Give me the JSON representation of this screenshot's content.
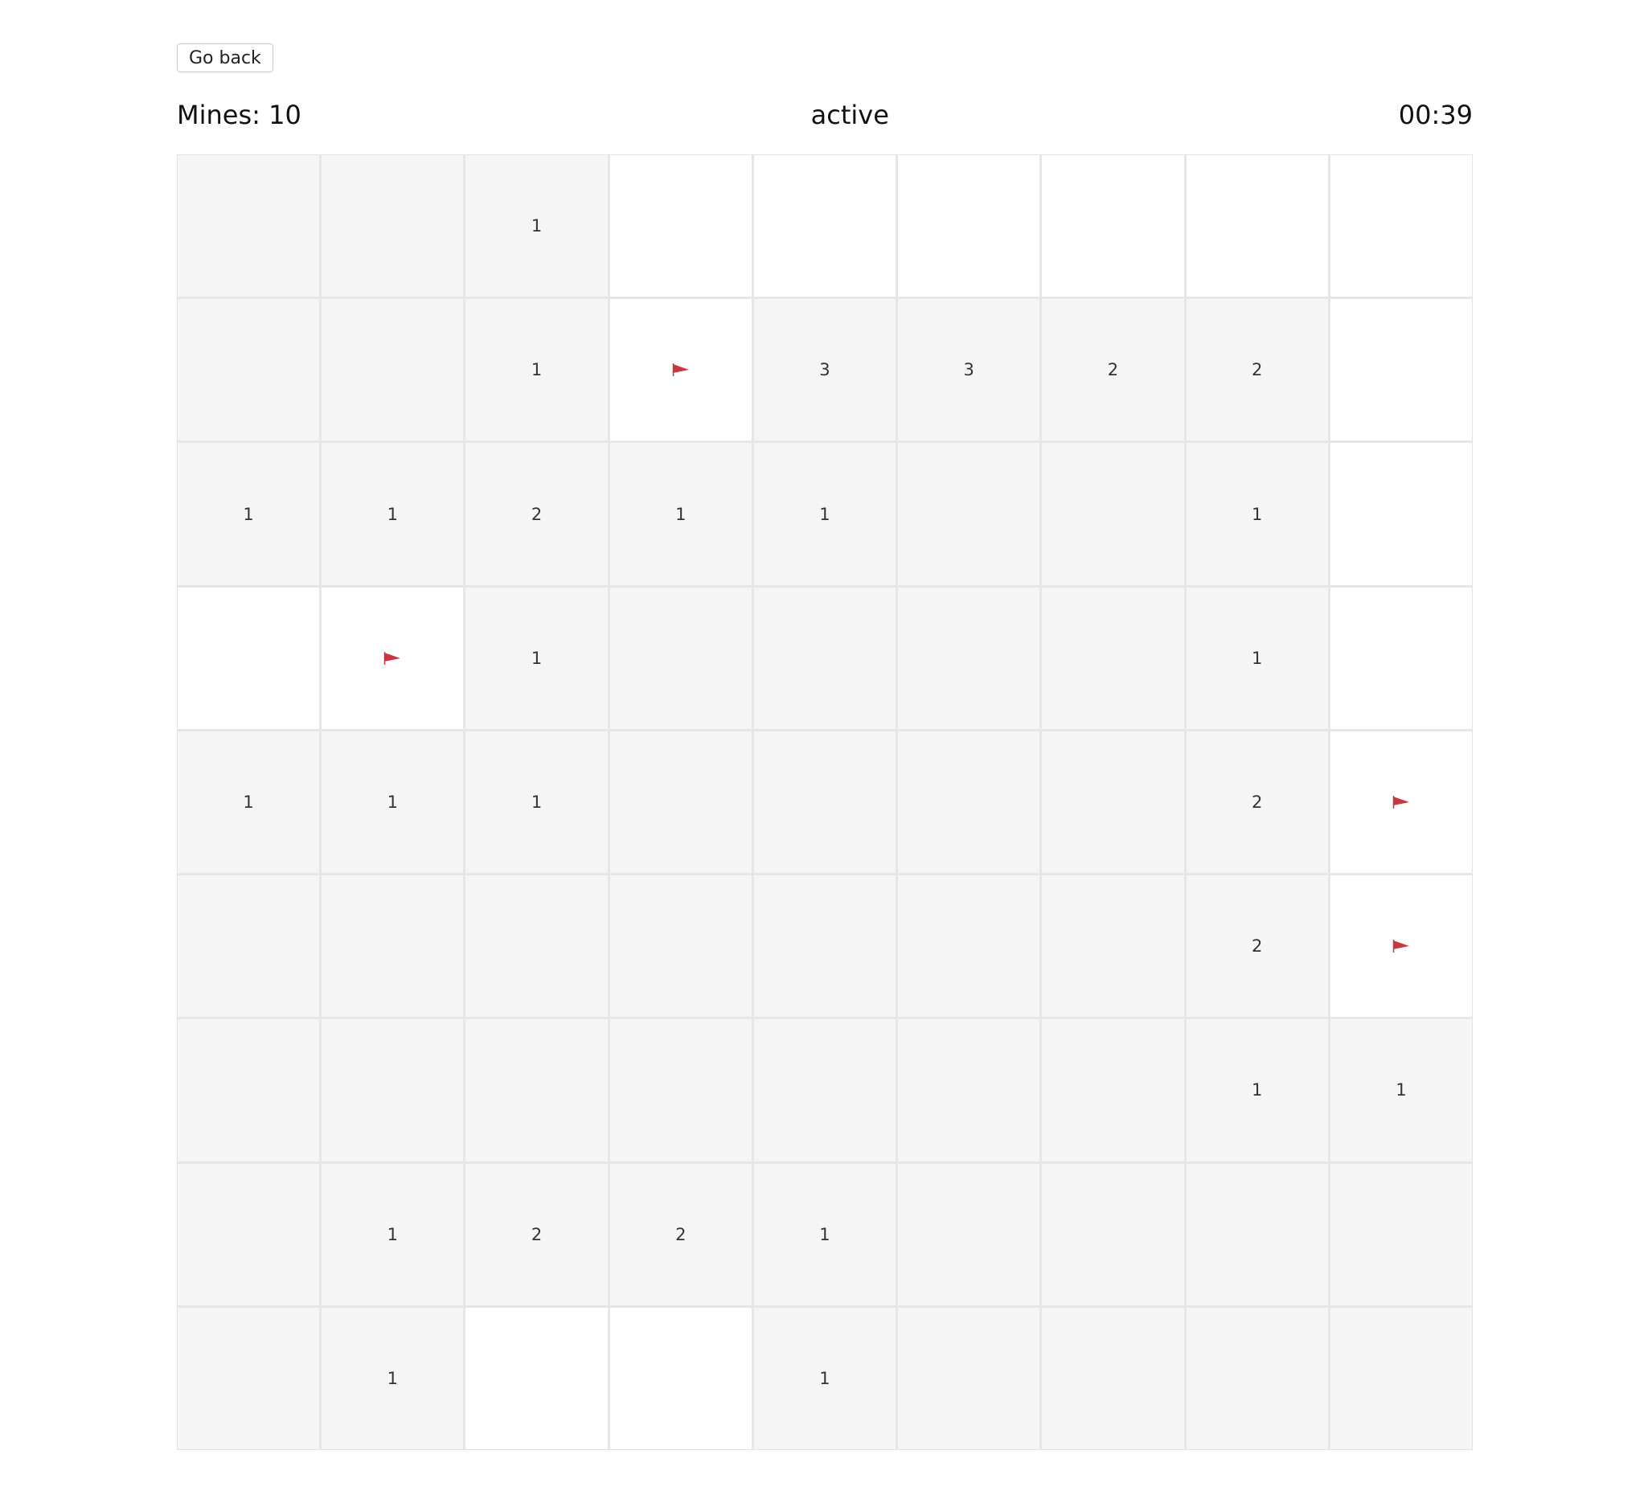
{
  "nav": {
    "back_label": "Go back"
  },
  "status": {
    "mines_label": "Mines: 10",
    "state": "active",
    "timer": "00:39"
  },
  "colors": {
    "revealed": "#f5f5f5",
    "hidden": "#ffffff",
    "grid_line": "#e6e6e6",
    "flag": "#c8373f"
  },
  "board": {
    "rows": 9,
    "cols": 9,
    "cells": [
      [
        "r",
        "r",
        "1",
        "h",
        "h",
        "h",
        "h",
        "h",
        "h"
      ],
      [
        "r",
        "r",
        "1",
        "f",
        "3",
        "3",
        "2",
        "2",
        "h"
      ],
      [
        "1",
        "1",
        "2",
        "1",
        "1",
        "r",
        "r",
        "1",
        "h"
      ],
      [
        "h",
        "f",
        "1",
        "r",
        "r",
        "r",
        "r",
        "1",
        "h"
      ],
      [
        "1",
        "1",
        "1",
        "r",
        "r",
        "r",
        "r",
        "2",
        "f"
      ],
      [
        "r",
        "r",
        "r",
        "r",
        "r",
        "r",
        "r",
        "2",
        "f"
      ],
      [
        "r",
        "r",
        "r",
        "r",
        "r",
        "r",
        "r",
        "1",
        "1"
      ],
      [
        "r",
        "1",
        "2",
        "2",
        "1",
        "r",
        "r",
        "r",
        "r"
      ],
      [
        "r",
        "1",
        "h",
        "h",
        "1",
        "r",
        "r",
        "r",
        "r"
      ]
    ],
    "legend": {
      "r": "revealed-empty",
      "h": "hidden",
      "f": "flag-icon"
    }
  }
}
